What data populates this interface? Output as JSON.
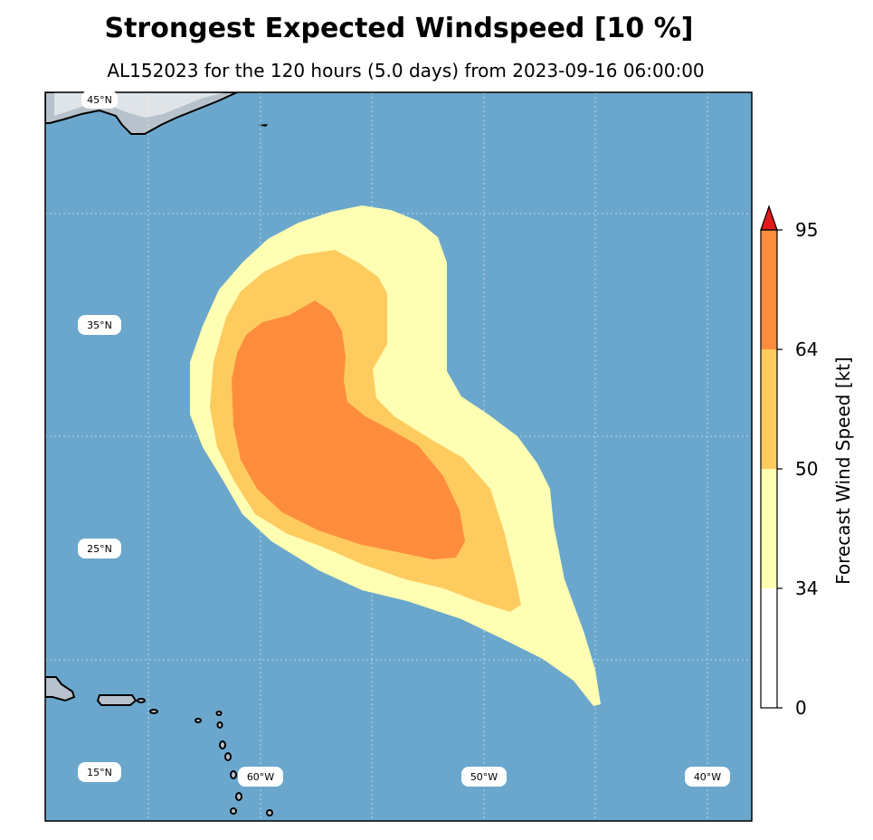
{
  "title": "Strongest Expected Windspeed [10 %]",
  "subtitle": "AL152023 for the 120 hours (5.0 days) from 2023-09-16 06:00:00",
  "map": {
    "ocean_color": "#6ba7cc",
    "land_color": "#b8c2cc",
    "lat_labels": [
      "45°N",
      "35°N",
      "25°N",
      "15°N"
    ],
    "lon_labels": [
      "60°W",
      "50°W",
      "40°W"
    ]
  },
  "chart_data": {
    "type": "filled_contour_map",
    "title": "Strongest Expected Windspeed [10 %]",
    "subtitle": "AL152023 for the 120 hours (5.0 days) from 2023-09-16 06:00:00",
    "storm_id": "AL152023",
    "forecast_hours": 120,
    "forecast_days": 5.0,
    "init_time": "2023-09-16 06:00:00",
    "lon_range": [
      -70.5,
      -38.8
    ],
    "lat_range": [
      12.8,
      45.5
    ],
    "contour_levels_kt": [
      34,
      50,
      64,
      95
    ],
    "bands": [
      {
        "range": "34-50 kt",
        "color": "#feffb3"
      },
      {
        "range": "50-64 kt",
        "color": "#fecb5f"
      },
      {
        "range": "64-95 kt",
        "color": "#fd8d3c"
      }
    ],
    "colorbar": {
      "label": "Forecast Wind Speed [kt]",
      "ticks": [
        0,
        34,
        50,
        64,
        95
      ],
      "tick_labels": [
        "0",
        "34",
        "50",
        "64",
        "95"
      ],
      "segments": [
        {
          "from": 0,
          "to": 34,
          "color": "#ffffff"
        },
        {
          "from": 34,
          "to": 50,
          "color": "#feffb3"
        },
        {
          "from": 50,
          "to": 64,
          "color": "#fecb5f"
        },
        {
          "from": 64,
          "to": 95,
          "color": "#fd8d3c"
        }
      ],
      "extend_color": "#e31a1c"
    }
  }
}
